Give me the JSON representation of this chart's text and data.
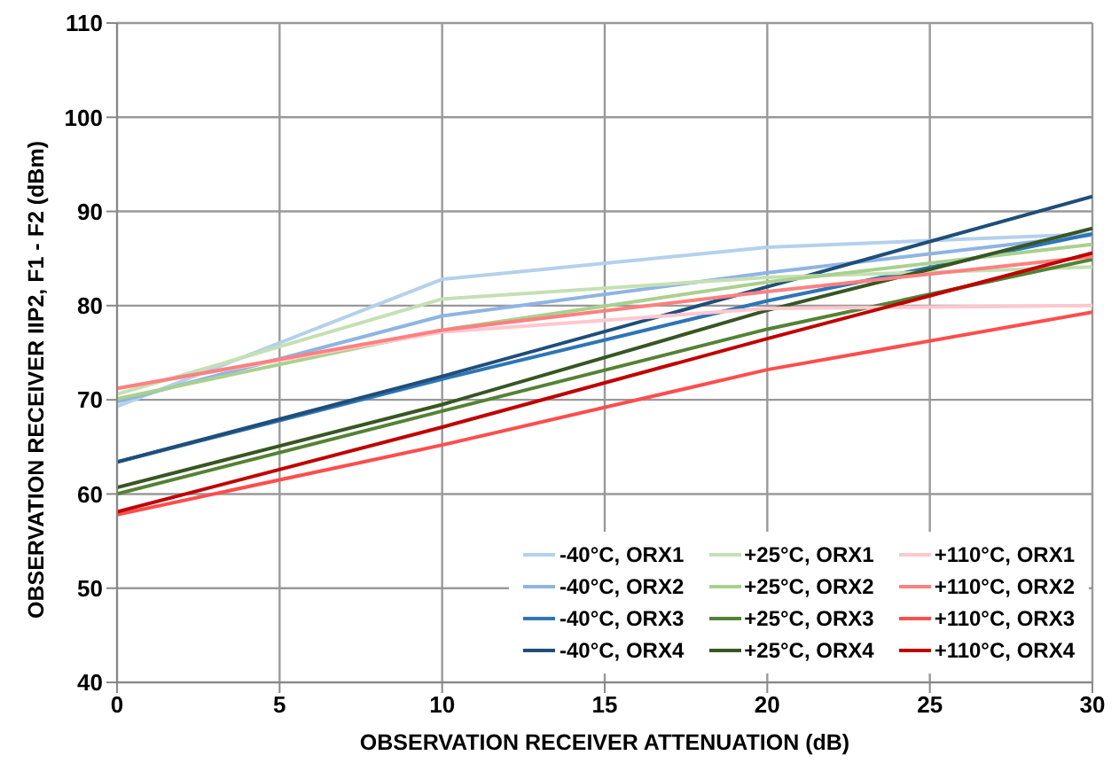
{
  "chart_data": {
    "type": "line",
    "xlabel": "OBSERVATION RECEIVER ATTENUATION (dB)",
    "ylabel": "OBSERVATION RECEIVER IIP2, F1 - F2 (dBm)",
    "x": [
      0,
      10,
      20,
      30
    ],
    "series": [
      {
        "name": "-40°C, ORX1",
        "color": "#b4d0ec",
        "values": [
          69.3,
          82.8,
          86.2,
          87.6
        ]
      },
      {
        "name": "-40°C, ORX2",
        "color": "#8eb4e3",
        "values": [
          69.8,
          78.9,
          83.5,
          87.5
        ]
      },
      {
        "name": "-40°C, ORX3",
        "color": "#2e75b6",
        "values": [
          63.4,
          72.2,
          80.5,
          87.6
        ]
      },
      {
        "name": "-40°C, ORX4",
        "color": "#1f4e79",
        "values": [
          63.4,
          72.5,
          82,
          91.6
        ]
      },
      {
        "name": "+25°C, ORX1",
        "color": "#c5e0b4",
        "values": [
          70.6,
          80.7,
          83,
          84.1
        ]
      },
      {
        "name": "+25°C, ORX2",
        "color": "#a9d18e",
        "values": [
          70.1,
          77.4,
          82.5,
          86.5
        ]
      },
      {
        "name": "+25°C, ORX3",
        "color": "#548235",
        "values": [
          60,
          68.8,
          77.5,
          84.9
        ]
      },
      {
        "name": "+25°C, ORX4",
        "color": "#375623",
        "values": [
          60.7,
          69.5,
          79.5,
          88.2
        ]
      },
      {
        "name": "+110°C, ORX1",
        "color": "#ffc7ce",
        "values": [
          71.2,
          77.2,
          79.7,
          80
        ]
      },
      {
        "name": "+110°C, ORX2",
        "color": "#ff8080",
        "values": [
          71.2,
          77.4,
          81.5,
          85.2
        ]
      },
      {
        "name": "+110°C, ORX3",
        "color": "#ff4d4d",
        "values": [
          57.8,
          65.2,
          73.2,
          79.3
        ]
      },
      {
        "name": "+110°C, ORX4",
        "color": "#c00000",
        "values": [
          58.1,
          67.1,
          76.5,
          85.6
        ]
      }
    ],
    "xlim": [
      0,
      30
    ],
    "xticks": [
      0,
      5,
      10,
      15,
      20,
      25,
      30
    ],
    "ylim": [
      40,
      110
    ],
    "yticks": [
      40,
      50,
      60,
      70,
      80,
      90,
      100,
      110
    ],
    "grid": true,
    "legend": "bottom right",
    "marker": "none",
    "line_style": "solid"
  }
}
